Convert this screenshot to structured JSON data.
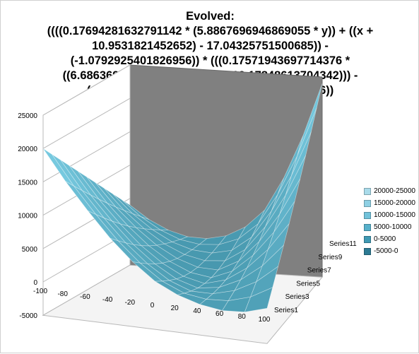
{
  "chart_data": {
    "type": "surface",
    "title_lines": [
      "Evolved:",
      "((((0.17694281632791142 * (5.8867696946869055 * y)) + ((x +",
      "10.9531821452652) - 17.04325751500685)) -",
      "(-1.0792925401826956)) * (((0.17571943697714376 *",
      "((6.686369396541136 * y) - (x + 10.17848613704342))) -",
      "(-6.608430165497714)) - 2.647396031169156))"
    ],
    "z_axis": {
      "ticks": [
        25000,
        20000,
        15000,
        10000,
        5000,
        0,
        -5000
      ],
      "labels": [
        "25000",
        "20000",
        "15000",
        "10000",
        "5000",
        "0",
        "-5000"
      ],
      "range": [
        -5000,
        25000
      ]
    },
    "x_axis": {
      "ticks": [
        -100,
        -80,
        -60,
        -40,
        -20,
        0,
        20,
        40,
        60,
        80,
        100
      ],
      "labels": [
        "-100",
        "-80",
        "-60",
        "-40",
        "-20",
        "0",
        "20",
        "40",
        "60",
        "80",
        "100"
      ],
      "range": [
        -100,
        100
      ]
    },
    "series_axis": {
      "labels": [
        "Series1",
        "Series3",
        "Series5",
        "Series7",
        "Series9",
        "Series11"
      ]
    },
    "surface_samples": {
      "x": [
        -100,
        -80,
        -60,
        -40,
        -20,
        0,
        20,
        40,
        60,
        80,
        100
      ],
      "series_index": [
        1,
        2,
        3,
        4,
        5,
        6,
        7,
        8,
        9,
        10,
        11
      ],
      "front_edge_series1": [
        20000,
        15500,
        11500,
        7800,
        4700,
        2200,
        600,
        -400,
        -900,
        -700,
        300
      ],
      "back_edge_series11": [
        4000,
        2000,
        600,
        -200,
        -300,
        300,
        1800,
        4500,
        9500,
        16000,
        24000
      ]
    },
    "legend": [
      {
        "label": "20000-25000",
        "color": "#a9dbea"
      },
      {
        "label": "15000-20000",
        "color": "#8fd0e4"
      },
      {
        "label": "10000-15000",
        "color": "#72c2da"
      },
      {
        "label": "5000-10000",
        "color": "#57b1cb"
      },
      {
        "label": "0-5000",
        "color": "#3f99b3"
      },
      {
        "label": "-5000-0",
        "color": "#2c7a93"
      }
    ],
    "colors": {
      "back_wall": "#808080",
      "surface_light": "#7dd0e6",
      "surface_dark": "#2f7f96",
      "grid": "#b8b8b8"
    }
  }
}
